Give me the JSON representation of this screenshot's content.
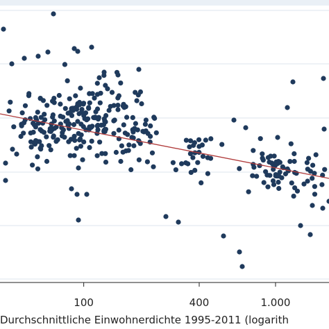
{
  "chart_data": {
    "type": "scatter",
    "title": "",
    "xlabel": "Durchschnittliche Einwohnerdichte 1995-2011 (logarith",
    "ylabel": "",
    "x_scale": "log",
    "xlim": [
      36.6,
      1900
    ],
    "x_ticks": [
      {
        "value": 100,
        "label": "100"
      },
      {
        "value": 400,
        "label": "400"
      },
      {
        "value": 1000,
        "label": "1.000"
      }
    ],
    "y_gridlines": 6,
    "grid": true,
    "colors": {
      "points": "#1f3a5c",
      "fit_line": "#b03a3a",
      "grid": "#dde5ee",
      "plot_background": "#ffffff",
      "top_band": "#eaf0f6",
      "axis": "#222222"
    },
    "fit_line": {
      "label": ""
    },
    "note": ""
  }
}
